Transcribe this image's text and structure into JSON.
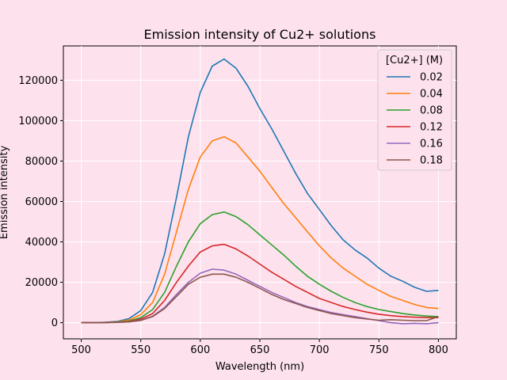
{
  "colors": {
    "background": "#fde2ee",
    "grid": "#ffffff"
  },
  "chart_data": {
    "type": "line",
    "title": "Emission intensity of Cu2+ solutions",
    "xlabel": "Wavelength (nm)",
    "ylabel": "Emission intensity",
    "xlim": [
      485,
      815
    ],
    "ylim": [
      -8000,
      137000
    ],
    "xticks": [
      500,
      550,
      600,
      650,
      700,
      750,
      800
    ],
    "yticks": [
      0,
      20000,
      40000,
      60000,
      80000,
      100000,
      120000
    ],
    "xtick_labels": [
      "500",
      "550",
      "600",
      "650",
      "700",
      "750",
      "800"
    ],
    "ytick_labels": [
      "0",
      "20000",
      "40000",
      "60000",
      "80000",
      "100000",
      "120000"
    ],
    "grid": true,
    "legend": {
      "title": "[Cu2+] (M)",
      "position": "top-right"
    },
    "x": [
      500,
      510,
      520,
      530,
      540,
      550,
      560,
      570,
      580,
      590,
      600,
      610,
      620,
      630,
      640,
      650,
      660,
      670,
      680,
      690,
      700,
      710,
      720,
      730,
      740,
      750,
      760,
      770,
      780,
      790,
      800
    ],
    "series": [
      {
        "name": "0.02",
        "color": "#1f77b4",
        "values": [
          0,
          0,
          200,
          600,
          2000,
          6000,
          15000,
          34000,
          62000,
          92000,
          114000,
          127000,
          130500,
          126000,
          117000,
          106000,
          96000,
          85000,
          74000,
          64000,
          56000,
          48000,
          41000,
          36000,
          32000,
          27000,
          23000,
          20500,
          17500,
          15500,
          16000
        ]
      },
      {
        "name": "0.04",
        "color": "#ff7f0e",
        "values": [
          0,
          0,
          100,
          400,
          1300,
          4000,
          10000,
          24000,
          45000,
          66000,
          82000,
          90000,
          92000,
          89000,
          82000,
          75000,
          67000,
          59000,
          52000,
          45000,
          38000,
          32000,
          27000,
          23000,
          19000,
          16000,
          13000,
          11000,
          9000,
          7500,
          7000
        ]
      },
      {
        "name": "0.08",
        "color": "#2ca02c",
        "values": [
          0,
          0,
          100,
          300,
          800,
          2500,
          6500,
          15000,
          28000,
          40000,
          49000,
          53500,
          54800,
          52500,
          48500,
          43500,
          38500,
          33500,
          28000,
          23000,
          19000,
          15500,
          12500,
          10000,
          8000,
          6500,
          5500,
          4500,
          3800,
          3300,
          3000
        ]
      },
      {
        "name": "0.12",
        "color": "#d62728",
        "values": [
          0,
          0,
          100,
          200,
          600,
          1800,
          4500,
          11000,
          20000,
          28000,
          35000,
          38000,
          38800,
          36500,
          33000,
          29000,
          25000,
          21500,
          18000,
          15000,
          12000,
          10000,
          8000,
          6500,
          5200,
          4200,
          3500,
          3000,
          2700,
          2500,
          2500
        ]
      },
      {
        "name": "0.16",
        "color": "#9467bd",
        "values": [
          0,
          0,
          50,
          150,
          400,
          1200,
          3200,
          7500,
          14000,
          20000,
          24500,
          26500,
          26000,
          24000,
          21000,
          18000,
          15000,
          12500,
          10000,
          8000,
          6500,
          5000,
          4000,
          3000,
          2000,
          1000,
          0,
          -500,
          -300,
          -500,
          0
        ]
      },
      {
        "name": "0.18",
        "color": "#8c564b",
        "values": [
          0,
          0,
          50,
          150,
          400,
          1100,
          3000,
          7000,
          13000,
          19000,
          22500,
          24000,
          24000,
          22500,
          20000,
          17000,
          14000,
          11500,
          9500,
          7500,
          6000,
          4500,
          3500,
          2500,
          1800,
          1200,
          1500,
          1200,
          1000,
          1000,
          3000
        ]
      }
    ]
  }
}
